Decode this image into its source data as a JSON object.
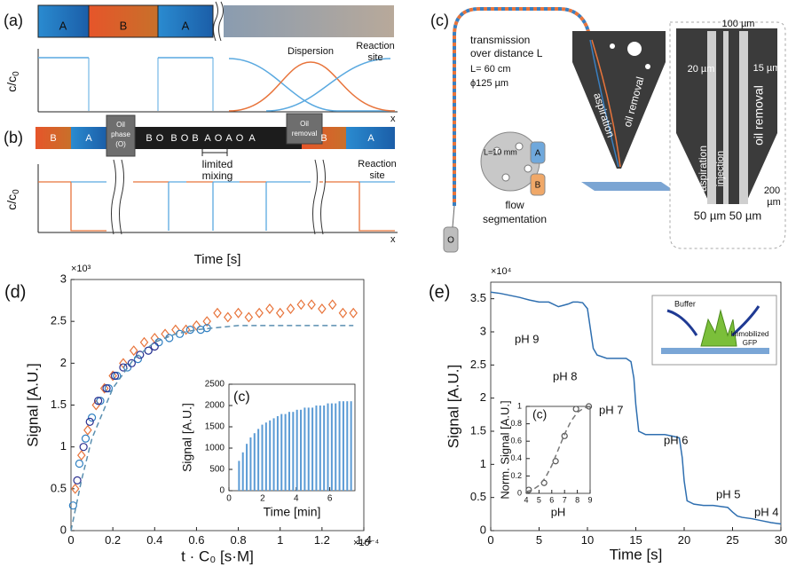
{
  "panel_a": {
    "label": "(a)",
    "blocks": [
      "A",
      "B",
      "A"
    ],
    "dispersion": "Dispersion",
    "reaction_site": [
      "Reaction",
      "site"
    ],
    "y_axis": "c/c",
    "y_axis_sub": "0",
    "x_axis": "x"
  },
  "panel_b": {
    "label": "(b)",
    "segments": [
      "B",
      "A",
      "B",
      "O",
      "B",
      "O",
      "B",
      "A",
      "O",
      "A",
      "O",
      "A",
      "B",
      "A"
    ],
    "oil_phase": [
      "Oil",
      "phase",
      "(O)"
    ],
    "oil_removal": [
      "Oil",
      "removal"
    ],
    "reaction_site": [
      "Reaction",
      "site"
    ],
    "limited_mixing": [
      "limited",
      "mixing"
    ],
    "y_axis": "c/c",
    "y_axis_sub": "0",
    "x_axis": "x",
    "time_label": "Time [s]"
  },
  "panel_c": {
    "label": "(c)",
    "transmission": [
      "transmission",
      "over distance L"
    ],
    "length": "L= 60 cm",
    "diameter": "ϕ125 µm",
    "gap": "L=10 mm",
    "reservoirs": [
      "A",
      "B",
      "O"
    ],
    "flow_segmentation": [
      "flow",
      "segmentation"
    ],
    "tip_labels": [
      "aspiration",
      "oil removal"
    ],
    "zoom": {
      "w100": "100 µm",
      "w20": "20 µm",
      "w15": "15 µm",
      "aspiration": "aspiration",
      "injection": "injection",
      "oil_removal": "oil removal",
      "w200": [
        "200",
        "µm"
      ],
      "w50": "50 µm 50 µm"
    }
  },
  "panel_e_schematic": {
    "buffer": "Buffer",
    "gfp": [
      "Immobilized",
      "GFP"
    ]
  },
  "chart_data": [
    {
      "type": "scatter",
      "panel_label": "(d)",
      "xlabel": "t · C₀ [s·M]",
      "ylabel": "Signal [A.U.]",
      "x_multiplier": "×10⁻⁴",
      "y_multiplier": "×10³",
      "xlim": [
        0,
        1.4
      ],
      "ylim": [
        0,
        3
      ],
      "xticks": [
        0,
        0.2,
        0.4,
        0.6,
        0.8,
        1,
        1.2,
        1.4
      ],
      "yticks": [
        0,
        0.5,
        1,
        1.5,
        2,
        2.5,
        3
      ],
      "series": [
        {
          "color": "#e8743b",
          "marker": "diamond",
          "x": [
            0.02,
            0.05,
            0.08,
            0.12,
            0.16,
            0.2,
            0.25,
            0.3,
            0.35,
            0.4,
            0.45,
            0.5,
            0.55,
            0.6,
            0.65,
            0.7,
            0.75,
            0.8,
            0.85,
            0.9,
            0.95,
            1.0,
            1.05,
            1.1,
            1.15,
            1.2,
            1.25,
            1.3,
            1.35
          ],
          "values": [
            0.5,
            0.9,
            1.2,
            1.5,
            1.7,
            1.85,
            2.0,
            2.15,
            2.25,
            2.3,
            2.35,
            2.4,
            2.4,
            2.45,
            2.5,
            2.6,
            2.55,
            2.6,
            2.55,
            2.6,
            2.65,
            2.6,
            2.65,
            2.7,
            2.7,
            2.65,
            2.7,
            2.6,
            2.6
          ]
        },
        {
          "color": "#2f7fc1",
          "marker": "circle",
          "x": [
            0.01,
            0.04,
            0.07,
            0.1,
            0.14,
            0.18,
            0.22,
            0.27,
            0.32,
            0.37,
            0.42,
            0.47,
            0.52,
            0.57,
            0.62,
            0.65
          ],
          "values": [
            0.3,
            0.8,
            1.1,
            1.35,
            1.55,
            1.7,
            1.85,
            1.95,
            2.05,
            2.15,
            2.25,
            2.3,
            2.35,
            2.4,
            2.4,
            2.42
          ]
        },
        {
          "color": "#2b2f8f",
          "marker": "circle",
          "x": [
            0.03,
            0.06,
            0.09,
            0.13,
            0.17,
            0.21,
            0.25,
            0.29,
            0.33,
            0.37,
            0.4
          ],
          "values": [
            0.6,
            1.0,
            1.3,
            1.55,
            1.7,
            1.85,
            1.95,
            2.0,
            2.1,
            2.15,
            2.2
          ]
        },
        {
          "color": "#5a8fb0",
          "marker": "dashed",
          "x": [
            0,
            0.05,
            0.1,
            0.2,
            0.3,
            0.4,
            0.5,
            0.6,
            0.8,
            1.0,
            1.2,
            1.35
          ],
          "values": [
            0,
            0.6,
            1.1,
            1.7,
            2.05,
            2.25,
            2.35,
            2.4,
            2.45,
            2.45,
            2.45,
            2.45
          ]
        }
      ]
    },
    {
      "type": "bar",
      "panel_label": "(c)",
      "xlabel": "Time [min]",
      "ylabel": "Signal [A.U.]",
      "color": "#5b9bd5",
      "xlim": [
        0,
        7.5
      ],
      "ylim": [
        0,
        2500
      ],
      "xticks": [
        0,
        2,
        4,
        6
      ],
      "yticks": [
        0,
        500,
        1000,
        1500,
        2000,
        2500
      ],
      "x": [
        0.6,
        0.83,
        1.06,
        1.29,
        1.52,
        1.75,
        1.98,
        2.21,
        2.44,
        2.67,
        2.9,
        3.13,
        3.36,
        3.59,
        3.82,
        4.05,
        4.28,
        4.51,
        4.74,
        4.97,
        5.2,
        5.43,
        5.66,
        5.89,
        6.12,
        6.35,
        6.58,
        6.81,
        7.04,
        7.27
      ],
      "values": [
        700,
        900,
        1100,
        1250,
        1350,
        1450,
        1550,
        1600,
        1650,
        1700,
        1750,
        1800,
        1800,
        1850,
        1850,
        1900,
        1900,
        1950,
        1950,
        1950,
        2000,
        2000,
        2000,
        2050,
        2050,
        2050,
        2100,
        2100,
        2100,
        2100
      ]
    },
    {
      "type": "line",
      "panel_label": "(e)",
      "xlabel": "Time [s]",
      "ylabel": "Signal [A.U.]",
      "y_multiplier": "×10⁴",
      "color": "#2f6fb0",
      "xlim": [
        0,
        30
      ],
      "ylim": [
        0,
        3.75
      ],
      "xticks": [
        0,
        5,
        10,
        15,
        20,
        25,
        30
      ],
      "yticks": [
        0,
        0.5,
        1,
        1.5,
        2,
        2.5,
        3,
        3.5
      ],
      "x": [
        0,
        1,
        2,
        3,
        3.5,
        4,
        5,
        6,
        7,
        8,
        8.5,
        9,
        9.5,
        10,
        10.3,
        10.6,
        11,
        12,
        13,
        14,
        14.5,
        14.8,
        15,
        15.3,
        16,
        17,
        18,
        19,
        19.5,
        19.8,
        20,
        20.3,
        21,
        22,
        23,
        24,
        24.5,
        25,
        25.5,
        26,
        27,
        28,
        29,
        30
      ],
      "values": [
        3.6,
        3.58,
        3.55,
        3.52,
        3.5,
        3.48,
        3.45,
        3.45,
        3.38,
        3.42,
        3.45,
        3.45,
        3.44,
        3.35,
        3.05,
        2.75,
        2.65,
        2.6,
        2.6,
        2.6,
        2.55,
        2.3,
        1.9,
        1.5,
        1.45,
        1.45,
        1.45,
        1.42,
        1.4,
        1.1,
        0.75,
        0.45,
        0.4,
        0.38,
        0.38,
        0.36,
        0.35,
        0.28,
        0.22,
        0.2,
        0.18,
        0.15,
        0.12,
        0.1
      ],
      "annotations": [
        "pH 9",
        "pH 8",
        "pH 7",
        "pH 6",
        "pH 5",
        "pH 4"
      ]
    },
    {
      "type": "scatter",
      "panel_label": "(c)",
      "xlabel": "pH",
      "ylabel": "Norm. Signal [A.U.]",
      "xlim": [
        4,
        9
      ],
      "ylim": [
        0,
        1
      ],
      "xticks": [
        4,
        5,
        6,
        7,
        8,
        9
      ],
      "yticks": [
        0,
        0.2,
        0.4,
        0.6,
        0.8,
        1
      ],
      "series": [
        {
          "color": "#555555",
          "marker": "circle",
          "x": [
            4.2,
            5.4,
            6.3,
            7,
            7.9,
            8.9
          ],
          "values": [
            0.04,
            0.12,
            0.37,
            0.66,
            0.97,
            1.0
          ]
        },
        {
          "color": "#777777",
          "marker": "dashed",
          "x": [
            4,
            4.5,
            5,
            5.5,
            6,
            6.5,
            7,
            7.5,
            8,
            8.5,
            9
          ],
          "values": [
            0.02,
            0.04,
            0.09,
            0.18,
            0.32,
            0.5,
            0.68,
            0.83,
            0.93,
            0.98,
            1.0
          ]
        }
      ]
    }
  ]
}
